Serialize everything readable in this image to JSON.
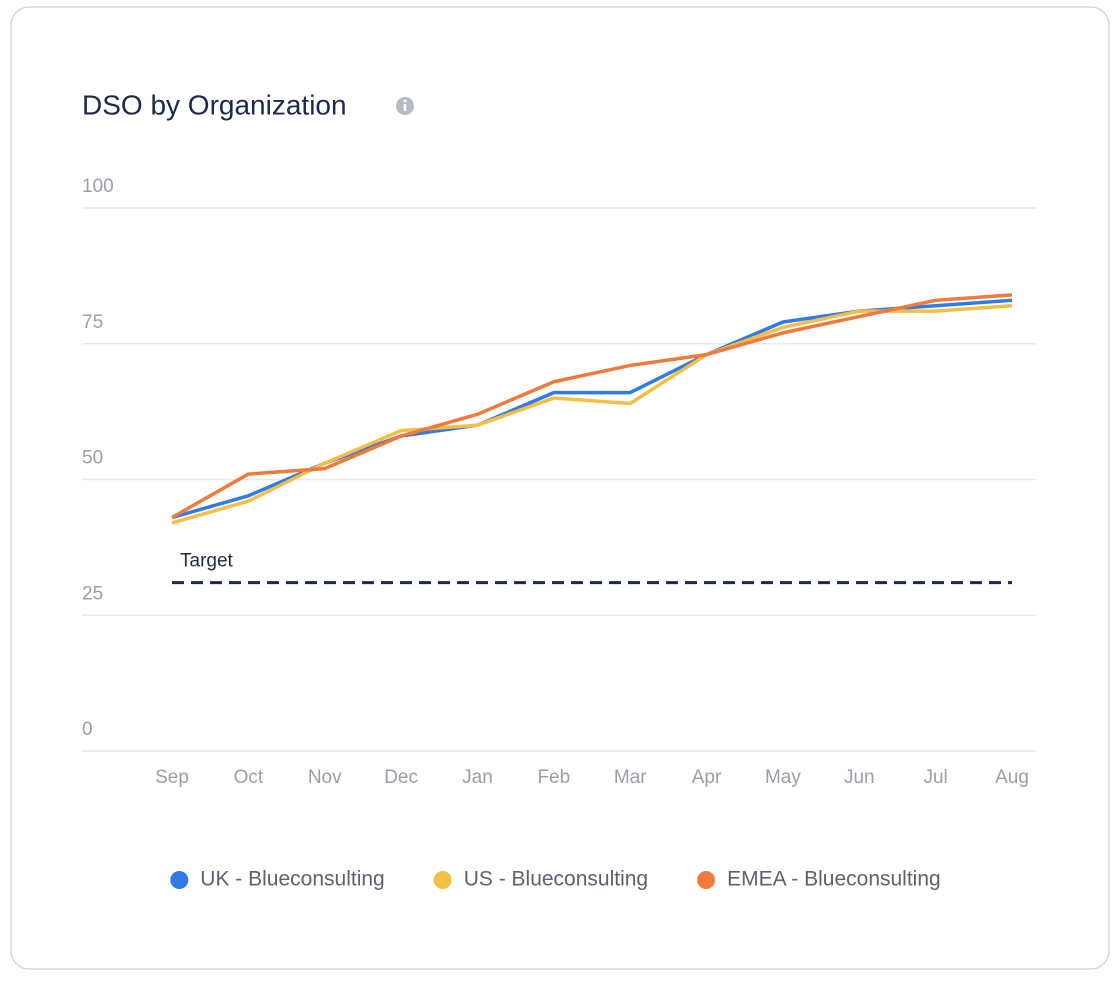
{
  "chart_data": {
    "type": "line",
    "title": "DSO by Organization",
    "categories": [
      "Sep",
      "Oct",
      "Nov",
      "Dec",
      "Jan",
      "Feb",
      "Mar",
      "Apr",
      "May",
      "Jun",
      "Jul",
      "Aug"
    ],
    "series": [
      {
        "name": "UK - Blueconsulting",
        "color": "#2f7be8",
        "values": [
          43,
          47,
          53,
          58,
          60,
          66,
          66,
          73,
          79,
          81,
          82,
          83
        ]
      },
      {
        "name": "US - Blueconsulting",
        "color": "#f5be45",
        "values": [
          42,
          46,
          53,
          59,
          60,
          65,
          64,
          73,
          78,
          81,
          81,
          82
        ]
      },
      {
        "name": "EMEA - Blueconsulting",
        "color": "#f07a3c",
        "values": [
          43,
          51,
          52,
          58,
          62,
          68,
          71,
          73,
          77,
          80,
          83,
          84
        ]
      }
    ],
    "target": {
      "label": "Target",
      "value": 31,
      "color": "#1b2a4a"
    },
    "ylim": [
      0,
      100
    ],
    "yticks": [
      0,
      25,
      50,
      75,
      100
    ],
    "grid": true,
    "legend": "bottom"
  }
}
